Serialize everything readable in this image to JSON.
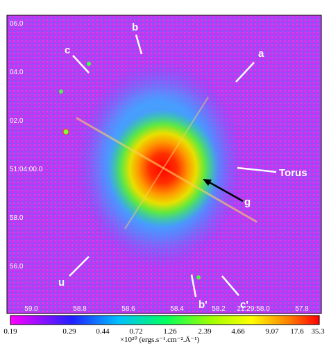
{
  "image": {
    "y_labels": [
      "06.0",
      "04.0",
      "02.0",
      "51:04:00.0",
      "58.0",
      "56.0"
    ],
    "x_labels": [
      "59.0",
      "58.8",
      "58.6",
      "58.4",
      "58.2",
      "21:29:58.0",
      "57.8"
    ],
    "annotations": [
      "b",
      "c",
      "a",
      "Torus",
      "g",
      "u",
      "b'",
      "c'"
    ]
  },
  "colorbar": {
    "ticks": [
      0.19,
      0.29,
      0.44,
      0.72,
      1.26,
      2.39,
      4.66,
      9.07,
      17.6,
      35.3
    ],
    "unit_label": "×10²⁰ (ergs.s⁻¹.cm⁻².Å⁻¹)"
  }
}
